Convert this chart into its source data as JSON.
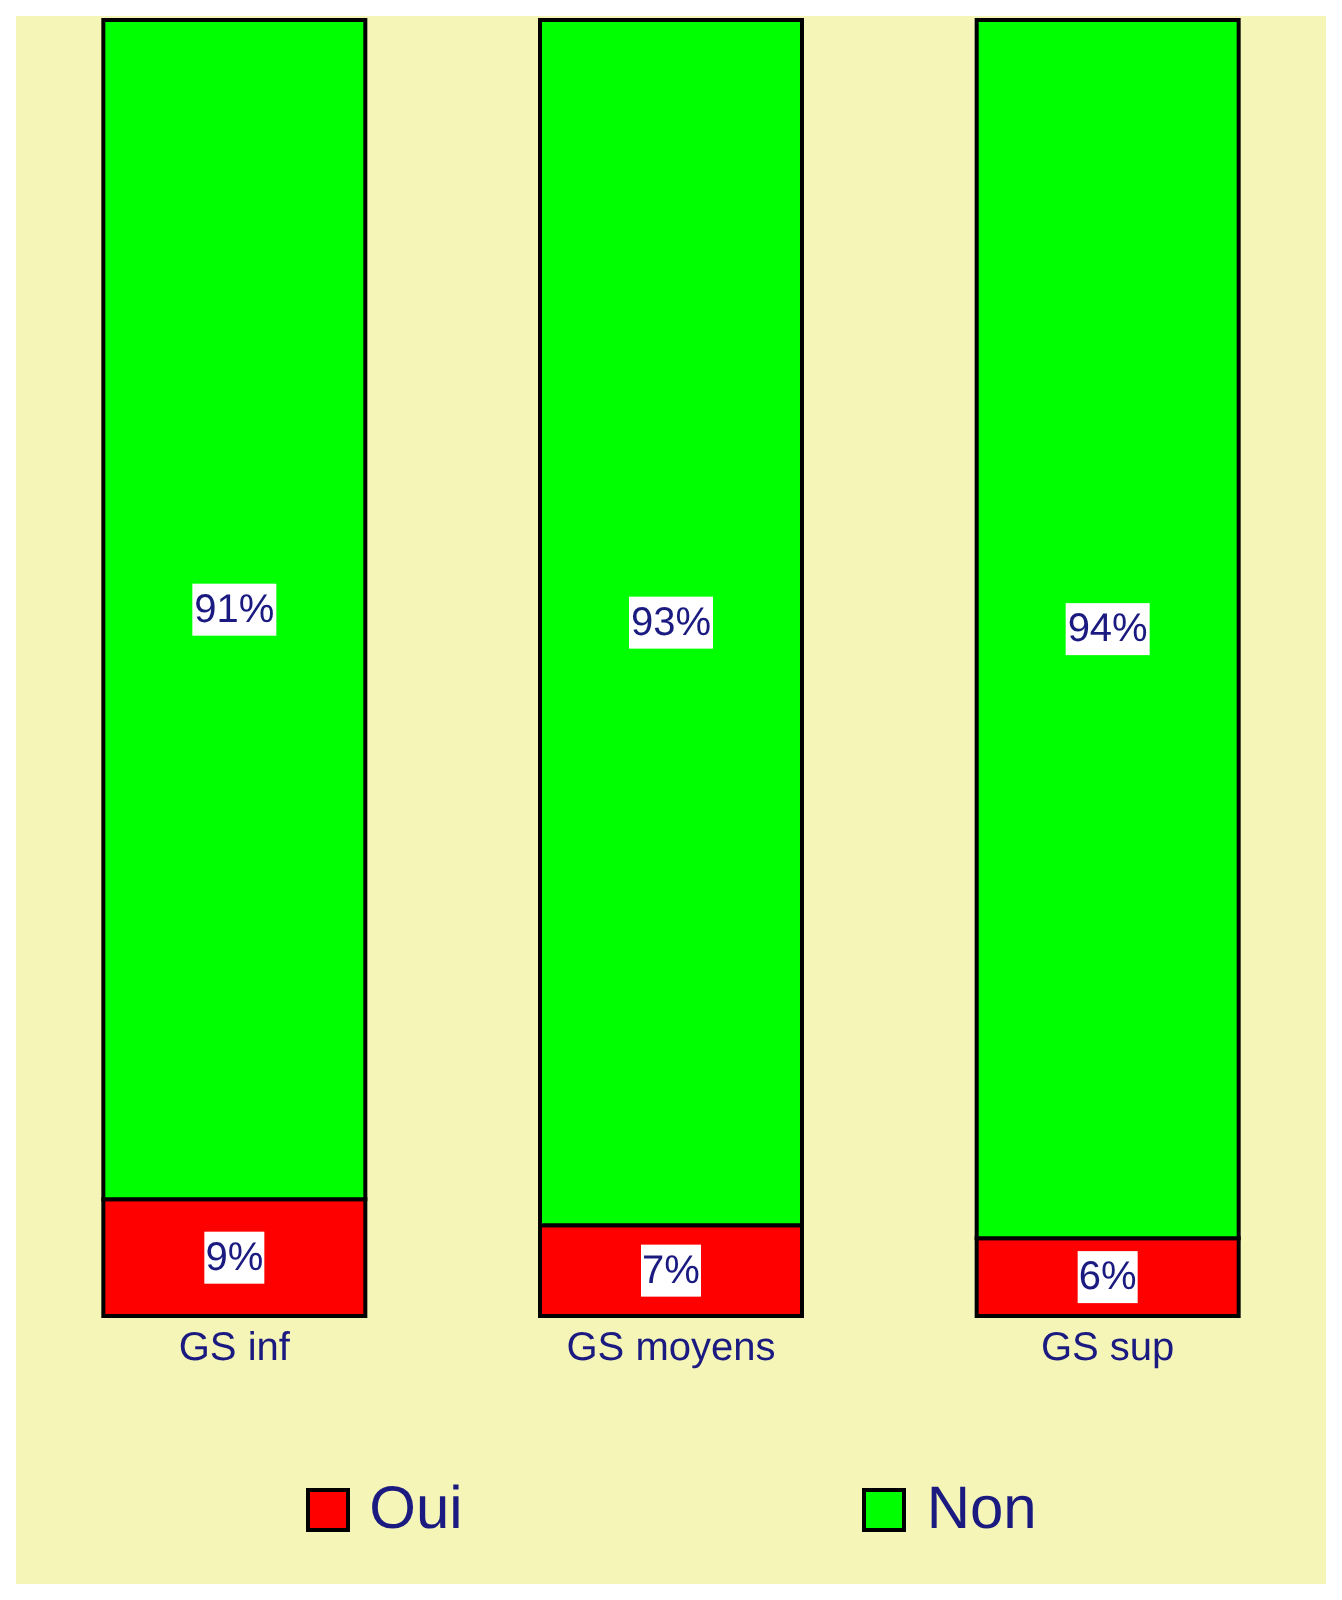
{
  "chart_data": {
    "type": "bar",
    "stacked": true,
    "categories": [
      "GS inf",
      "GS moyens",
      "GS sup"
    ],
    "series": [
      {
        "name": "Oui",
        "color": "#ff0000",
        "values": [
          9,
          7,
          6
        ],
        "value_labels": [
          "9%",
          "7%",
          "6%"
        ]
      },
      {
        "name": "Non",
        "color": "#00ff00",
        "values": [
          91,
          93,
          94
        ],
        "value_labels": [
          "91%",
          "93%",
          "94%"
        ]
      }
    ],
    "legend": "bottom",
    "grid": false
  }
}
